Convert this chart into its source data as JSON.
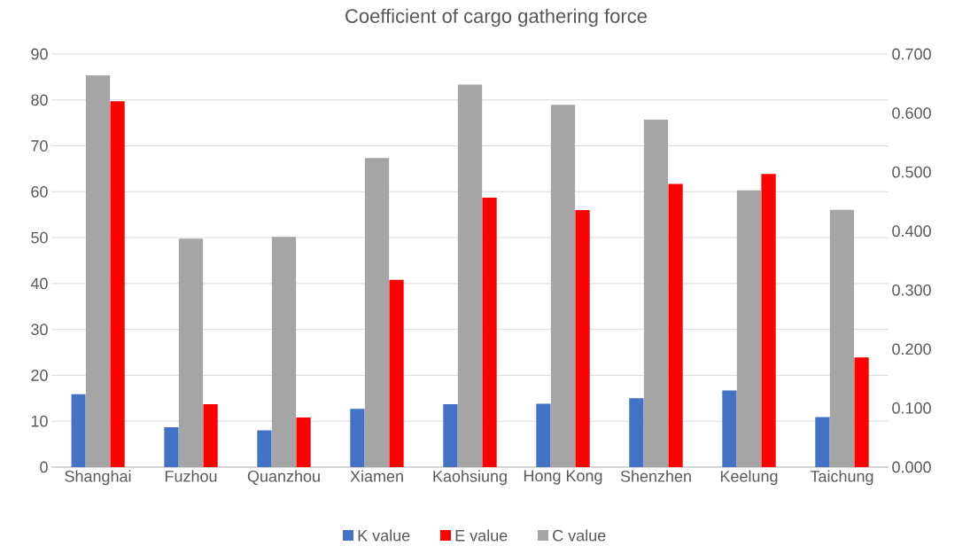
{
  "chart_data": {
    "type": "bar",
    "title": "Coefficient of cargo gathering force",
    "categories": [
      "Shanghai",
      "Fuzhou",
      "Quanzhou",
      "Xiamen",
      "Kaohsiung",
      "Hong Kong",
      "Shenzhen",
      "Keelung",
      "Taichung"
    ],
    "series": [
      {
        "name": "K value",
        "color": "#4472c4",
        "values": [
          15.9,
          8.7,
          8.0,
          12.7,
          13.7,
          13.8,
          15.0,
          16.7,
          10.9
        ]
      },
      {
        "name": "E value",
        "color": "#ff0000",
        "values": [
          79.7,
          13.7,
          10.8,
          40.8,
          58.7,
          56.0,
          61.7,
          63.9,
          23.9
        ]
      },
      {
        "name": "C value",
        "color": "#a5a5a5",
        "axis": "y2",
        "values": [
          0.664,
          0.387,
          0.39,
          0.524,
          0.648,
          0.614,
          0.589,
          0.469,
          0.436
        ]
      }
    ],
    "ylim": [
      0,
      90
    ],
    "yticks": [
      0,
      10,
      20,
      30,
      40,
      50,
      60,
      70,
      80,
      90
    ],
    "y2lim": [
      0,
      0.7
    ],
    "y2ticks": [
      {
        "value": 0,
        "label": "0.000"
      },
      {
        "value": 0.1,
        "label": "0.100"
      },
      {
        "value": 0.2,
        "label": "0.200"
      },
      {
        "value": 0.3,
        "label": "0.300"
      },
      {
        "value": 0.4,
        "label": "0.400"
      },
      {
        "value": 0.5,
        "label": "0.500"
      },
      {
        "value": 0.6,
        "label": "0.600"
      },
      {
        "value": 0.7,
        "label": "0.700"
      }
    ],
    "grid": "y",
    "legend": "bottom"
  }
}
